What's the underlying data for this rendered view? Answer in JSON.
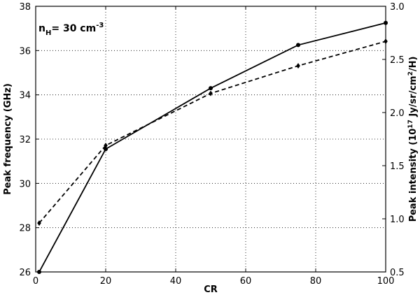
{
  "chart_data": {
    "type": "line",
    "xlabel": "CR",
    "ylabel_left": "Peak frequency (GHz)",
    "ylabel_right": {
      "prefix": "Peak intensity (10",
      "exp1": "17",
      "mid": " Jy/sr/cm",
      "exp2": "2",
      "suffix": "/H)"
    },
    "annotation": {
      "base": "n",
      "sub": "H",
      "mid": "= 30 cm",
      "sup": "-3"
    },
    "xlim": [
      0,
      100
    ],
    "ylim_left": [
      26,
      38
    ],
    "ylim_right": [
      0.5,
      3.0
    ],
    "x_ticks": [
      0,
      20,
      40,
      60,
      80,
      100
    ],
    "y_left_ticks": [
      26,
      28,
      30,
      32,
      34,
      36,
      38
    ],
    "y_right_ticks": [
      0.5,
      1.0,
      1.5,
      2.0,
      2.5,
      3.0
    ],
    "x_tick_labels": [
      "0",
      "20",
      "40",
      "60",
      "80",
      "100"
    ],
    "y_left_tick_labels": [
      "26",
      "28",
      "30",
      "32",
      "34",
      "36",
      "38"
    ],
    "y_right_tick_labels": [
      "0.5",
      "1.0",
      "1.5",
      "2.0",
      "2.5",
      "3.0"
    ],
    "grid": true,
    "series": [
      {
        "axis": "left",
        "style": "solid",
        "marker": "circle",
        "color": "#000000",
        "x": [
          1,
          20,
          50,
          75,
          100
        ],
        "y": [
          26.0,
          31.55,
          34.3,
          36.25,
          37.25
        ]
      },
      {
        "axis": "right",
        "style": "dashed",
        "marker": "diamond",
        "color": "#000000",
        "x": [
          1,
          20,
          50,
          75,
          100
        ],
        "y": [
          0.96,
          1.69,
          2.18,
          2.44,
          2.67
        ]
      }
    ]
  }
}
